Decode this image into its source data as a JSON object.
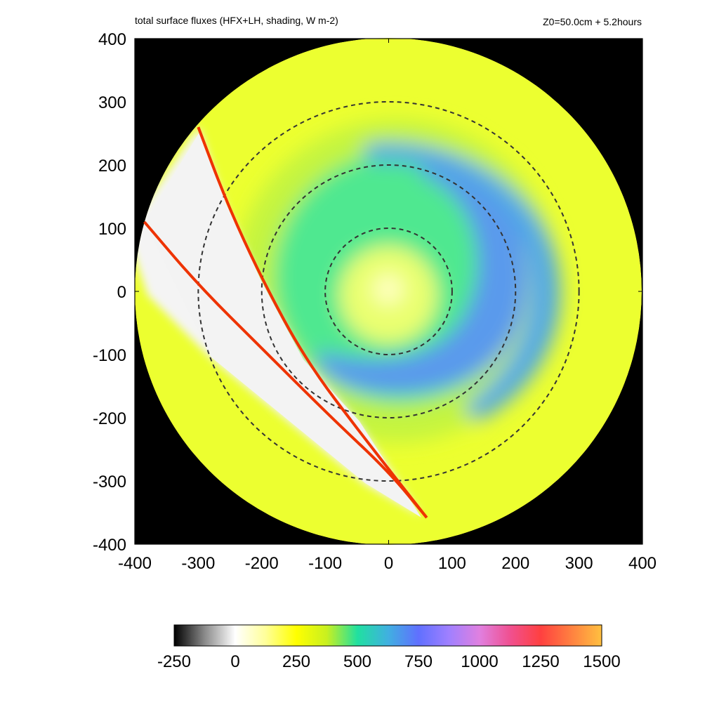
{
  "header": {
    "title": "total surface fluxes (HFX+LH, shading, W m-2)",
    "run_info": "Z0=50.0cm  + 5.2hours"
  },
  "chart_data": {
    "type": "heatmap",
    "title": "total surface fluxes (HFX+LH, shading, W m-2)",
    "run_info": "Z0=50.0cm  + 5.2hours",
    "xlim": [
      -400,
      400
    ],
    "ylim": [
      -400,
      400
    ],
    "x_ticks": [
      "-400",
      "-300",
      "-200",
      "-100",
      "0",
      "100",
      "200",
      "300",
      "400"
    ],
    "y_ticks": [
      "400",
      "300",
      "200",
      "100",
      "0",
      "-100",
      "-200",
      "-300",
      "-400"
    ],
    "domain_radius": 400,
    "range_rings": [
      100,
      200,
      300
    ],
    "eye_center": [
      0,
      0
    ],
    "colorbar": {
      "ticks": [
        "-250",
        "0",
        "250",
        "500",
        "750",
        "1000",
        "1250",
        "1500"
      ],
      "range": [
        -250,
        1500
      ],
      "stops": [
        {
          "value": -250,
          "color": "#000000"
        },
        {
          "value": -125,
          "color": "#8a8a8a"
        },
        {
          "value": 0,
          "color": "#ffffff"
        },
        {
          "value": 125,
          "color": "#ffff99"
        },
        {
          "value": 250,
          "color": "#ffff00"
        },
        {
          "value": 375,
          "color": "#c8f020"
        },
        {
          "value": 500,
          "color": "#20e0a0"
        },
        {
          "value": 625,
          "color": "#40b0e0"
        },
        {
          "value": 750,
          "color": "#6070ff"
        },
        {
          "value": 875,
          "color": "#a080ff"
        },
        {
          "value": 1000,
          "color": "#e080e0"
        },
        {
          "value": 1125,
          "color": "#f05090"
        },
        {
          "value": 1250,
          "color": "#ff4040"
        },
        {
          "value": 1375,
          "color": "#ff8040"
        },
        {
          "value": 1500,
          "color": "#ffc040"
        }
      ]
    },
    "regions": [
      {
        "name": "outer domain",
        "approx_flux": 290,
        "color": "#ecff30"
      },
      {
        "name": "inner rainband core",
        "approx_flux": 500,
        "color": "#50e890"
      },
      {
        "name": "spiral band maxima",
        "approx_flux": 700,
        "color": "#5a9aec"
      },
      {
        "name": "eye",
        "approx_flux": 150,
        "color": "#ffffc0"
      },
      {
        "name": "cold wake",
        "approx_flux": 10,
        "color": "#f4f4f4"
      }
    ],
    "wake_boundary_lines": [
      {
        "name": "upper edge",
        "points": [
          [
            -300,
            260
          ],
          [
            -255,
            140
          ],
          [
            -200,
            20
          ],
          [
            -130,
            -110
          ],
          [
            -40,
            -230
          ],
          [
            60,
            -358
          ]
        ]
      },
      {
        "name": "lower edge",
        "points": [
          [
            -385,
            110
          ],
          [
            -300,
            10
          ],
          [
            -200,
            -90
          ],
          [
            -90,
            -200
          ],
          [
            0,
            -285
          ],
          [
            60,
            -358
          ]
        ]
      }
    ],
    "boundary_line_color": "#ee3300"
  }
}
